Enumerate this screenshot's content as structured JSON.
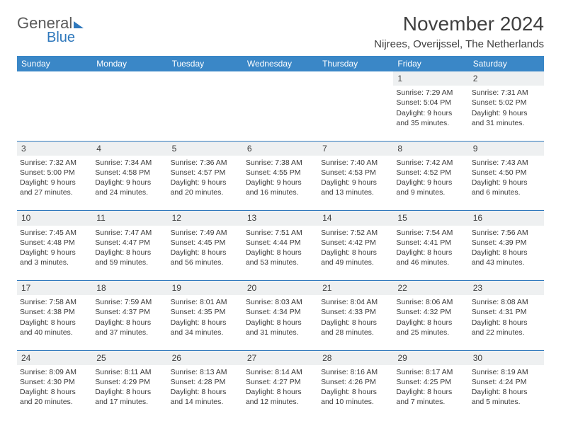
{
  "logo": {
    "line1": "General",
    "line2": "Blue"
  },
  "title": "November 2024",
  "location": "Nijrees, Overijssel, The Netherlands",
  "colors": {
    "header_bg": "#3a87c7",
    "header_text": "#ffffff",
    "daynum_bg": "#eef0f1",
    "row_border": "#2f78bc",
    "text": "#3a3a3a",
    "page_bg": "#ffffff"
  },
  "typography": {
    "body_fontsize": 10.5,
    "header_fontsize": 12,
    "title_fontsize": 28
  },
  "weekdays": [
    "Sunday",
    "Monday",
    "Tuesday",
    "Wednesday",
    "Thursday",
    "Friday",
    "Saturday"
  ],
  "weeks": [
    [
      null,
      null,
      null,
      null,
      null,
      {
        "n": "1",
        "sr": "Sunrise: 7:29 AM",
        "ss": "Sunset: 5:04 PM",
        "d1": "Daylight: 9 hours",
        "d2": "and 35 minutes."
      },
      {
        "n": "2",
        "sr": "Sunrise: 7:31 AM",
        "ss": "Sunset: 5:02 PM",
        "d1": "Daylight: 9 hours",
        "d2": "and 31 minutes."
      }
    ],
    [
      {
        "n": "3",
        "sr": "Sunrise: 7:32 AM",
        "ss": "Sunset: 5:00 PM",
        "d1": "Daylight: 9 hours",
        "d2": "and 27 minutes."
      },
      {
        "n": "4",
        "sr": "Sunrise: 7:34 AM",
        "ss": "Sunset: 4:58 PM",
        "d1": "Daylight: 9 hours",
        "d2": "and 24 minutes."
      },
      {
        "n": "5",
        "sr": "Sunrise: 7:36 AM",
        "ss": "Sunset: 4:57 PM",
        "d1": "Daylight: 9 hours",
        "d2": "and 20 minutes."
      },
      {
        "n": "6",
        "sr": "Sunrise: 7:38 AM",
        "ss": "Sunset: 4:55 PM",
        "d1": "Daylight: 9 hours",
        "d2": "and 16 minutes."
      },
      {
        "n": "7",
        "sr": "Sunrise: 7:40 AM",
        "ss": "Sunset: 4:53 PM",
        "d1": "Daylight: 9 hours",
        "d2": "and 13 minutes."
      },
      {
        "n": "8",
        "sr": "Sunrise: 7:42 AM",
        "ss": "Sunset: 4:52 PM",
        "d1": "Daylight: 9 hours",
        "d2": "and 9 minutes."
      },
      {
        "n": "9",
        "sr": "Sunrise: 7:43 AM",
        "ss": "Sunset: 4:50 PM",
        "d1": "Daylight: 9 hours",
        "d2": "and 6 minutes."
      }
    ],
    [
      {
        "n": "10",
        "sr": "Sunrise: 7:45 AM",
        "ss": "Sunset: 4:48 PM",
        "d1": "Daylight: 9 hours",
        "d2": "and 3 minutes."
      },
      {
        "n": "11",
        "sr": "Sunrise: 7:47 AM",
        "ss": "Sunset: 4:47 PM",
        "d1": "Daylight: 8 hours",
        "d2": "and 59 minutes."
      },
      {
        "n": "12",
        "sr": "Sunrise: 7:49 AM",
        "ss": "Sunset: 4:45 PM",
        "d1": "Daylight: 8 hours",
        "d2": "and 56 minutes."
      },
      {
        "n": "13",
        "sr": "Sunrise: 7:51 AM",
        "ss": "Sunset: 4:44 PM",
        "d1": "Daylight: 8 hours",
        "d2": "and 53 minutes."
      },
      {
        "n": "14",
        "sr": "Sunrise: 7:52 AM",
        "ss": "Sunset: 4:42 PM",
        "d1": "Daylight: 8 hours",
        "d2": "and 49 minutes."
      },
      {
        "n": "15",
        "sr": "Sunrise: 7:54 AM",
        "ss": "Sunset: 4:41 PM",
        "d1": "Daylight: 8 hours",
        "d2": "and 46 minutes."
      },
      {
        "n": "16",
        "sr": "Sunrise: 7:56 AM",
        "ss": "Sunset: 4:39 PM",
        "d1": "Daylight: 8 hours",
        "d2": "and 43 minutes."
      }
    ],
    [
      {
        "n": "17",
        "sr": "Sunrise: 7:58 AM",
        "ss": "Sunset: 4:38 PM",
        "d1": "Daylight: 8 hours",
        "d2": "and 40 minutes."
      },
      {
        "n": "18",
        "sr": "Sunrise: 7:59 AM",
        "ss": "Sunset: 4:37 PM",
        "d1": "Daylight: 8 hours",
        "d2": "and 37 minutes."
      },
      {
        "n": "19",
        "sr": "Sunrise: 8:01 AM",
        "ss": "Sunset: 4:35 PM",
        "d1": "Daylight: 8 hours",
        "d2": "and 34 minutes."
      },
      {
        "n": "20",
        "sr": "Sunrise: 8:03 AM",
        "ss": "Sunset: 4:34 PM",
        "d1": "Daylight: 8 hours",
        "d2": "and 31 minutes."
      },
      {
        "n": "21",
        "sr": "Sunrise: 8:04 AM",
        "ss": "Sunset: 4:33 PM",
        "d1": "Daylight: 8 hours",
        "d2": "and 28 minutes."
      },
      {
        "n": "22",
        "sr": "Sunrise: 8:06 AM",
        "ss": "Sunset: 4:32 PM",
        "d1": "Daylight: 8 hours",
        "d2": "and 25 minutes."
      },
      {
        "n": "23",
        "sr": "Sunrise: 8:08 AM",
        "ss": "Sunset: 4:31 PM",
        "d1": "Daylight: 8 hours",
        "d2": "and 22 minutes."
      }
    ],
    [
      {
        "n": "24",
        "sr": "Sunrise: 8:09 AM",
        "ss": "Sunset: 4:30 PM",
        "d1": "Daylight: 8 hours",
        "d2": "and 20 minutes."
      },
      {
        "n": "25",
        "sr": "Sunrise: 8:11 AM",
        "ss": "Sunset: 4:29 PM",
        "d1": "Daylight: 8 hours",
        "d2": "and 17 minutes."
      },
      {
        "n": "26",
        "sr": "Sunrise: 8:13 AM",
        "ss": "Sunset: 4:28 PM",
        "d1": "Daylight: 8 hours",
        "d2": "and 14 minutes."
      },
      {
        "n": "27",
        "sr": "Sunrise: 8:14 AM",
        "ss": "Sunset: 4:27 PM",
        "d1": "Daylight: 8 hours",
        "d2": "and 12 minutes."
      },
      {
        "n": "28",
        "sr": "Sunrise: 8:16 AM",
        "ss": "Sunset: 4:26 PM",
        "d1": "Daylight: 8 hours",
        "d2": "and 10 minutes."
      },
      {
        "n": "29",
        "sr": "Sunrise: 8:17 AM",
        "ss": "Sunset: 4:25 PM",
        "d1": "Daylight: 8 hours",
        "d2": "and 7 minutes."
      },
      {
        "n": "30",
        "sr": "Sunrise: 8:19 AM",
        "ss": "Sunset: 4:24 PM",
        "d1": "Daylight: 8 hours",
        "d2": "and 5 minutes."
      }
    ]
  ]
}
